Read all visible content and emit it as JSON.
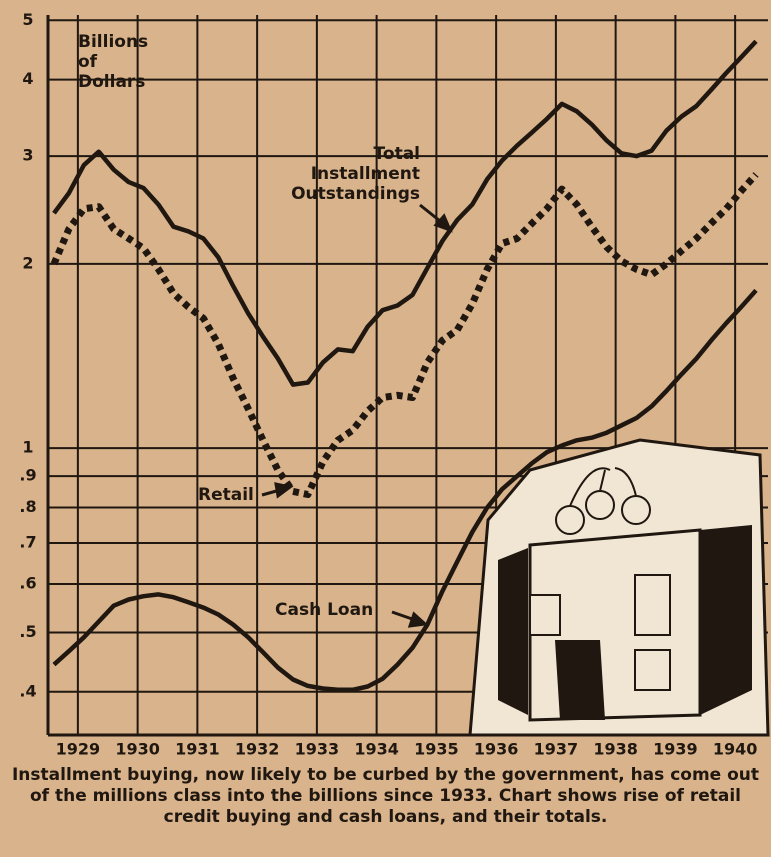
{
  "chart_data": {
    "type": "line",
    "ylabel": "Billions of Dollars",
    "caption": "Installment buying, now likely to be curbed by the government, has come out of the millions class into the billions since 1933. Chart shows rise of retail credit buying and cash loans, and their totals.",
    "x": [
      1928.6,
      1928.85,
      1929.1,
      1929.35,
      1929.6,
      1929.85,
      1930.1,
      1930.35,
      1930.6,
      1930.85,
      1931.1,
      1931.35,
      1931.6,
      1931.85,
      1932.1,
      1932.35,
      1932.6,
      1932.85,
      1933.1,
      1933.35,
      1933.6,
      1933.85,
      1934.1,
      1934.35,
      1934.6,
      1934.85,
      1935.1,
      1935.35,
      1935.6,
      1935.85,
      1936.1,
      1936.35,
      1936.6,
      1936.85,
      1937.1,
      1937.35,
      1937.6,
      1937.85,
      1938.1,
      1938.35,
      1938.6,
      1938.85,
      1939.1,
      1939.35,
      1939.6,
      1939.85,
      1940.1,
      1940.35
    ],
    "series": [
      {
        "name": "Total Installment Outstandings",
        "color": "#1f1710",
        "line_style": "solid",
        "values": [
          2.42,
          2.61,
          2.9,
          3.05,
          2.85,
          2.72,
          2.66,
          2.5,
          2.3,
          2.26,
          2.2,
          2.05,
          1.84,
          1.66,
          1.52,
          1.4,
          1.27,
          1.28,
          1.38,
          1.45,
          1.44,
          1.58,
          1.68,
          1.71,
          1.78,
          1.97,
          2.18,
          2.36,
          2.5,
          2.75,
          2.95,
          3.12,
          3.28,
          3.45,
          3.65,
          3.55,
          3.38,
          3.18,
          3.03,
          3.0,
          3.06,
          3.3,
          3.48,
          3.62,
          3.85,
          4.1,
          4.35,
          4.62
        ]
      },
      {
        "name": "Retail",
        "color": "#1f1710",
        "line_style": "dashed",
        "values": [
          2.0,
          2.28,
          2.46,
          2.48,
          2.28,
          2.2,
          2.12,
          1.96,
          1.79,
          1.7,
          1.63,
          1.48,
          1.3,
          1.16,
          1.03,
          0.92,
          0.85,
          0.84,
          0.95,
          1.03,
          1.07,
          1.15,
          1.21,
          1.22,
          1.21,
          1.38,
          1.5,
          1.56,
          1.72,
          1.96,
          2.16,
          2.2,
          2.33,
          2.46,
          2.65,
          2.5,
          2.3,
          2.13,
          2.02,
          1.96,
          1.92,
          2.0,
          2.1,
          2.2,
          2.33,
          2.46,
          2.63,
          2.8
        ]
      },
      {
        "name": "Cash Loan",
        "color": "#1f1710",
        "line_style": "solid",
        "values": [
          0.443,
          0.466,
          0.491,
          0.521,
          0.553,
          0.566,
          0.573,
          0.577,
          0.571,
          0.56,
          0.549,
          0.535,
          0.515,
          0.491,
          0.464,
          0.438,
          0.419,
          0.409,
          0.405,
          0.403,
          0.403,
          0.408,
          0.42,
          0.443,
          0.472,
          0.515,
          0.584,
          0.653,
          0.729,
          0.8,
          0.857,
          0.9,
          0.945,
          0.985,
          1.01,
          1.03,
          1.04,
          1.06,
          1.09,
          1.12,
          1.17,
          1.24,
          1.32,
          1.4,
          1.5,
          1.6,
          1.7,
          1.81
        ]
      }
    ],
    "xlim": [
      1928.5,
      1940.55
    ],
    "xticks": [
      1929,
      1930,
      1931,
      1932,
      1933,
      1934,
      1935,
      1936,
      1937,
      1938,
      1939,
      1940
    ],
    "ylim": [
      0.34,
      5.1
    ],
    "log_y": true,
    "yticks": [
      {
        "value": 0.4,
        "label": ".4"
      },
      {
        "value": 0.5,
        "label": ".5"
      },
      {
        "value": 0.6,
        "label": ".6"
      },
      {
        "value": 0.7,
        "label": ".7"
      },
      {
        "value": 0.8,
        "label": ".8"
      },
      {
        "value": 0.9,
        "label": ".9"
      },
      1,
      2,
      3,
      4,
      5
    ],
    "grid": true
  }
}
